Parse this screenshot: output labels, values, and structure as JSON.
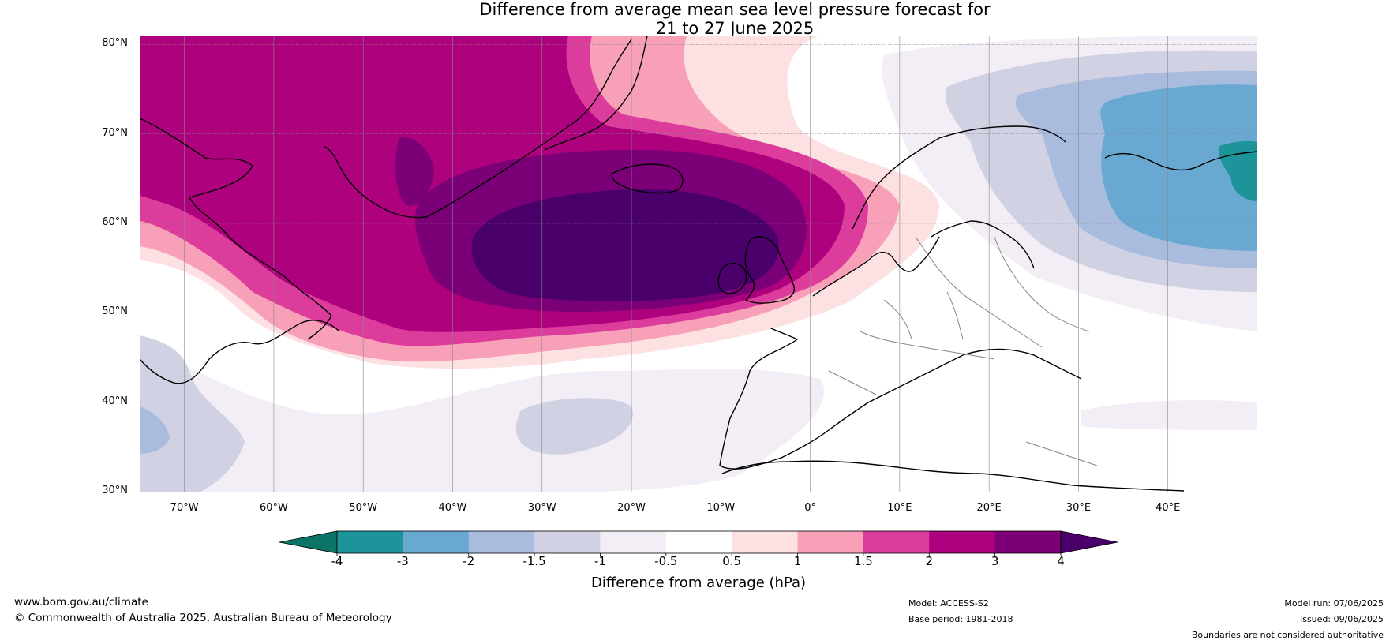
{
  "title": {
    "line1": "Difference from average mean sea level pressure forecast for",
    "line2": "21 to 27 June 2025"
  },
  "map": {
    "projection": "plate-carree",
    "lon_range": [
      -75,
      50
    ],
    "lat_range": [
      30,
      81
    ],
    "lat_labels": [
      "80°N",
      "70°N",
      "60°N",
      "50°N",
      "40°N",
      "30°N"
    ],
    "lon_labels": [
      "70°W",
      "60°W",
      "50°W",
      "40°W",
      "30°W",
      "20°W",
      "10°W",
      "0°",
      "10°E",
      "20°E",
      "30°E",
      "40°E"
    ],
    "anomaly_features": [
      {
        "name": "positive-anomaly-north-atlantic",
        "region": "Greenland to British Isles",
        "peak_hPa": "> 4"
      },
      {
        "name": "negative-anomaly-northwest-russia",
        "region": "Scandinavia to north-west Russia",
        "peak_hPa": "< -3"
      },
      {
        "name": "negative-anomaly-east-america",
        "region": "eastern North America coast",
        "peak_hPa": "-2 to -1.5"
      },
      {
        "name": "negative-anomaly-central-atlantic",
        "region": "west of Azores",
        "peak_hPa": "-1.5 to -1"
      }
    ]
  },
  "colorbar": {
    "title": "Difference from average (hPa)",
    "ticks": [
      "-4",
      "-3",
      "-2",
      "-1.5",
      "-1",
      "-0.5",
      "0.5",
      "1",
      "1.5",
      "2",
      "3",
      "4"
    ],
    "colors": {
      "below": "#0b7467",
      "bins": [
        "#1d949a",
        "#69a9d1",
        "#a9bcdd",
        "#d0d2e4",
        "#f3eef5",
        "#ffffff",
        "#fde0e2",
        "#f8a0b8",
        "#dc3c9b",
        "#ae017e",
        "#7b0077"
      ],
      "above": "#49006a"
    }
  },
  "footer": {
    "website": "www.bom.gov.au/climate",
    "copyright": "© Commonwealth of Australia 2025, Australian Bureau of Meteorology",
    "model": "Model: ACCESS-S2",
    "base_period": "Base period: 1981-2018",
    "model_run": "Model run: 07/06/2025",
    "issued": "Issued: 09/06/2025",
    "disclaimer": "Boundaries are not considered authoritative"
  }
}
